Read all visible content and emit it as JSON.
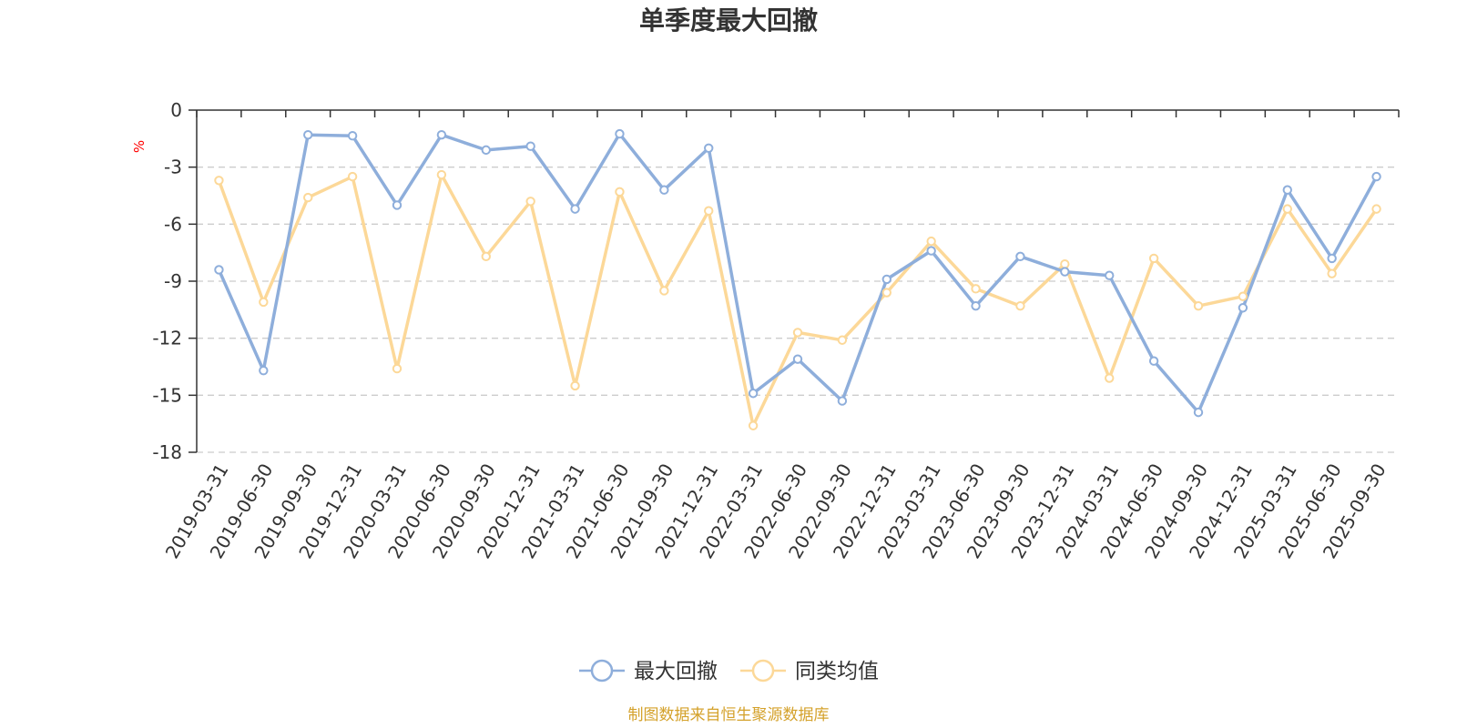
{
  "chart_data": {
    "type": "line",
    "title": "单季度最大回撤",
    "y_unit": "%",
    "ylim": [
      -18,
      0
    ],
    "y_ticks": [
      0,
      -3,
      -6,
      -9,
      -12,
      -15,
      -18
    ],
    "grid": "horizontal-dashed",
    "legend_position": "bottom-center",
    "categories": [
      "2019-03-31",
      "2019-06-30",
      "2019-09-30",
      "2019-12-31",
      "2020-03-31",
      "2020-06-30",
      "2020-09-30",
      "2020-12-31",
      "2021-03-31",
      "2021-06-30",
      "2021-09-30",
      "2021-12-31",
      "2022-03-31",
      "2022-06-30",
      "2022-09-30",
      "2022-12-31",
      "2023-03-31",
      "2023-06-30",
      "2023-09-30",
      "2023-12-31",
      "2024-03-31",
      "2024-06-30",
      "2024-09-30",
      "2024-12-31",
      "2025-03-31",
      "2025-06-30",
      "2025-09-30"
    ],
    "series": [
      {
        "name": "最大回撤",
        "color": "#8eaedb",
        "values": [
          -8.4,
          -13.7,
          -1.3,
          -1.35,
          -5.0,
          -1.3,
          -2.1,
          -1.9,
          -5.2,
          -1.25,
          -4.2,
          -2.0,
          -14.9,
          -13.1,
          -15.3,
          -8.9,
          -7.4,
          -10.3,
          -7.7,
          -8.5,
          -8.7,
          -13.2,
          -15.9,
          -10.4,
          -4.2,
          -7.8,
          -3.5
        ]
      },
      {
        "name": "同类均值",
        "color": "#fcd898",
        "values": [
          -3.7,
          -10.1,
          -4.6,
          -3.5,
          -13.6,
          -3.4,
          -7.7,
          -4.8,
          -14.5,
          -4.3,
          -9.5,
          -5.3,
          -16.6,
          -11.7,
          -12.1,
          -9.6,
          -6.9,
          -9.4,
          -10.3,
          -8.1,
          -14.1,
          -7.8,
          -10.3,
          -9.8,
          -5.2,
          -8.6,
          -5.2
        ]
      }
    ]
  },
  "source_text": "制图数据来自恒生聚源数据库",
  "colors": {
    "axis": "#333333",
    "grid": "#cccccc",
    "unit": "#ff0000",
    "source": "#d4a12a"
  }
}
